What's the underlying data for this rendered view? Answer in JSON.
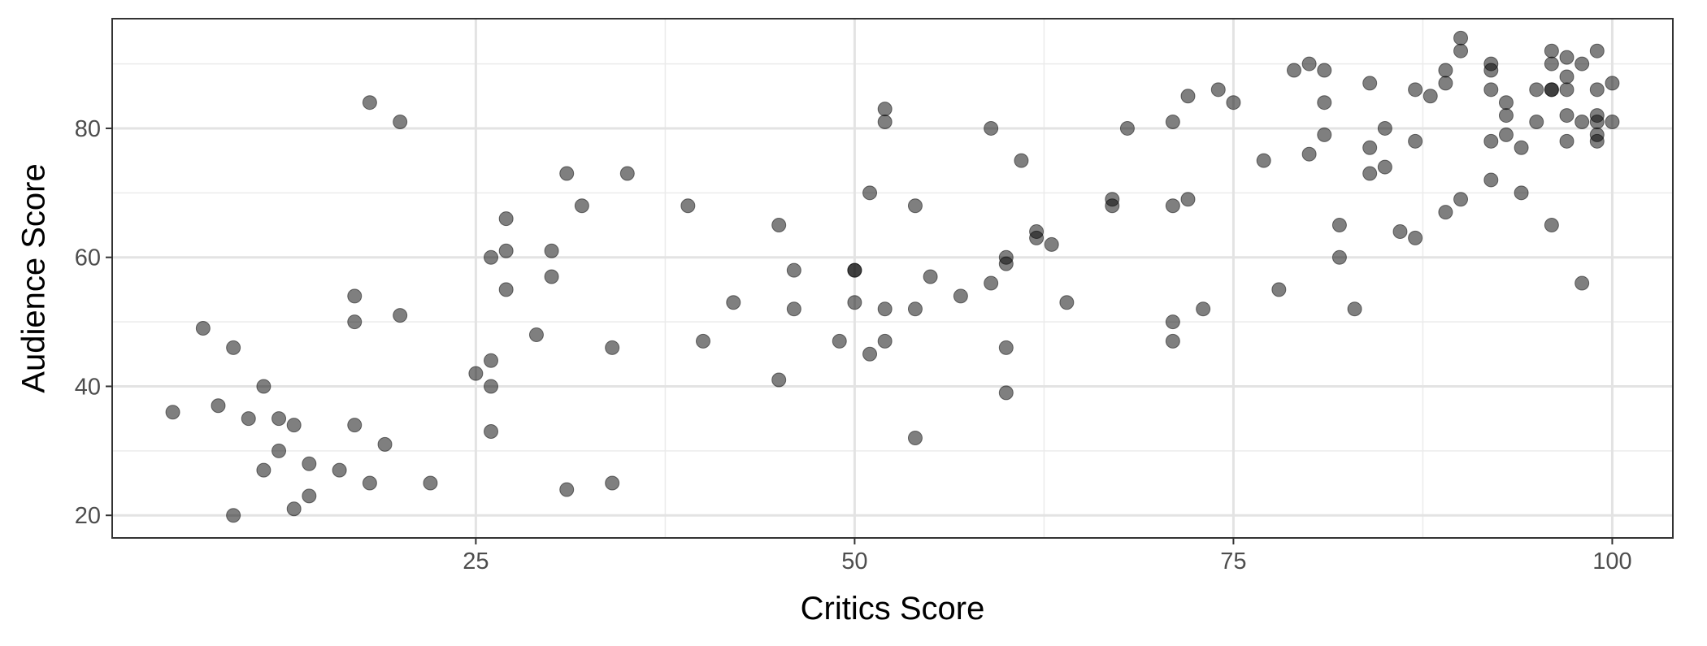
{
  "chart_data": {
    "type": "scatter",
    "title": "",
    "xlabel": "Critics Score",
    "ylabel": "Audience Score",
    "xlim": [
      1,
      104
    ],
    "ylim": [
      16.5,
      97
    ],
    "x_ticks": [
      25,
      50,
      75,
      100
    ],
    "y_ticks": [
      20,
      40,
      60,
      80
    ],
    "x_minor_ticks": [
      37.5,
      62.5,
      87.5
    ],
    "y_minor_ticks": [
      30,
      50,
      70,
      90
    ],
    "x_tick_labels": [
      "25",
      "50",
      "75",
      "100"
    ],
    "y_tick_labels": [
      "20",
      "40",
      "60",
      "80"
    ],
    "grid": true,
    "point_color": "#000000",
    "point_opacity": 0.5,
    "points": [
      {
        "x": 5,
        "y": 36
      },
      {
        "x": 7,
        "y": 49
      },
      {
        "x": 8,
        "y": 37
      },
      {
        "x": 9,
        "y": 46
      },
      {
        "x": 9,
        "y": 20
      },
      {
        "x": 10,
        "y": 35
      },
      {
        "x": 11,
        "y": 40
      },
      {
        "x": 11,
        "y": 27
      },
      {
        "x": 12,
        "y": 35
      },
      {
        "x": 12,
        "y": 30
      },
      {
        "x": 13,
        "y": 34
      },
      {
        "x": 13,
        "y": 21
      },
      {
        "x": 14,
        "y": 28
      },
      {
        "x": 14,
        "y": 23
      },
      {
        "x": 16,
        "y": 27
      },
      {
        "x": 17,
        "y": 54
      },
      {
        "x": 17,
        "y": 50
      },
      {
        "x": 17,
        "y": 34
      },
      {
        "x": 18,
        "y": 84
      },
      {
        "x": 18,
        "y": 25
      },
      {
        "x": 19,
        "y": 31
      },
      {
        "x": 20,
        "y": 81
      },
      {
        "x": 20,
        "y": 51
      },
      {
        "x": 22,
        "y": 25
      },
      {
        "x": 25,
        "y": 42
      },
      {
        "x": 26,
        "y": 60
      },
      {
        "x": 26,
        "y": 44
      },
      {
        "x": 26,
        "y": 40
      },
      {
        "x": 26,
        "y": 33
      },
      {
        "x": 27,
        "y": 66
      },
      {
        "x": 27,
        "y": 61
      },
      {
        "x": 27,
        "y": 55
      },
      {
        "x": 29,
        "y": 48
      },
      {
        "x": 30,
        "y": 61
      },
      {
        "x": 30,
        "y": 57
      },
      {
        "x": 31,
        "y": 73
      },
      {
        "x": 31,
        "y": 24
      },
      {
        "x": 32,
        "y": 68
      },
      {
        "x": 34,
        "y": 46
      },
      {
        "x": 34,
        "y": 25
      },
      {
        "x": 35,
        "y": 73
      },
      {
        "x": 39,
        "y": 68
      },
      {
        "x": 40,
        "y": 47
      },
      {
        "x": 42,
        "y": 53
      },
      {
        "x": 45,
        "y": 65
      },
      {
        "x": 45,
        "y": 41
      },
      {
        "x": 46,
        "y": 58
      },
      {
        "x": 46,
        "y": 52
      },
      {
        "x": 49,
        "y": 47
      },
      {
        "x": 50,
        "y": 58
      },
      {
        "x": 50,
        "y": 58
      },
      {
        "x": 50,
        "y": 53
      },
      {
        "x": 51,
        "y": 70
      },
      {
        "x": 51,
        "y": 45
      },
      {
        "x": 52,
        "y": 83
      },
      {
        "x": 52,
        "y": 81
      },
      {
        "x": 52,
        "y": 52
      },
      {
        "x": 52,
        "y": 47
      },
      {
        "x": 54,
        "y": 68
      },
      {
        "x": 54,
        "y": 52
      },
      {
        "x": 54,
        "y": 32
      },
      {
        "x": 55,
        "y": 57
      },
      {
        "x": 57,
        "y": 54
      },
      {
        "x": 59,
        "y": 80
      },
      {
        "x": 59,
        "y": 56
      },
      {
        "x": 60,
        "y": 60
      },
      {
        "x": 60,
        "y": 59
      },
      {
        "x": 60,
        "y": 46
      },
      {
        "x": 60,
        "y": 39
      },
      {
        "x": 61,
        "y": 75
      },
      {
        "x": 62,
        "y": 64
      },
      {
        "x": 62,
        "y": 63
      },
      {
        "x": 63,
        "y": 62
      },
      {
        "x": 64,
        "y": 53
      },
      {
        "x": 67,
        "y": 69
      },
      {
        "x": 67,
        "y": 68
      },
      {
        "x": 68,
        "y": 80
      },
      {
        "x": 71,
        "y": 81
      },
      {
        "x": 71,
        "y": 68
      },
      {
        "x": 71,
        "y": 50
      },
      {
        "x": 71,
        "y": 47
      },
      {
        "x": 72,
        "y": 85
      },
      {
        "x": 72,
        "y": 69
      },
      {
        "x": 73,
        "y": 52
      },
      {
        "x": 74,
        "y": 86
      },
      {
        "x": 75,
        "y": 84
      },
      {
        "x": 77,
        "y": 75
      },
      {
        "x": 78,
        "y": 55
      },
      {
        "x": 79,
        "y": 89
      },
      {
        "x": 80,
        "y": 90
      },
      {
        "x": 80,
        "y": 76
      },
      {
        "x": 81,
        "y": 89
      },
      {
        "x": 81,
        "y": 84
      },
      {
        "x": 81,
        "y": 79
      },
      {
        "x": 82,
        "y": 65
      },
      {
        "x": 82,
        "y": 60
      },
      {
        "x": 83,
        "y": 52
      },
      {
        "x": 84,
        "y": 87
      },
      {
        "x": 84,
        "y": 77
      },
      {
        "x": 84,
        "y": 73
      },
      {
        "x": 85,
        "y": 80
      },
      {
        "x": 85,
        "y": 74
      },
      {
        "x": 86,
        "y": 64
      },
      {
        "x": 87,
        "y": 86
      },
      {
        "x": 87,
        "y": 78
      },
      {
        "x": 87,
        "y": 63
      },
      {
        "x": 88,
        "y": 85
      },
      {
        "x": 89,
        "y": 89
      },
      {
        "x": 89,
        "y": 87
      },
      {
        "x": 89,
        "y": 67
      },
      {
        "x": 90,
        "y": 94
      },
      {
        "x": 90,
        "y": 92
      },
      {
        "x": 90,
        "y": 69
      },
      {
        "x": 92,
        "y": 90
      },
      {
        "x": 92,
        "y": 89
      },
      {
        "x": 92,
        "y": 86
      },
      {
        "x": 92,
        "y": 78
      },
      {
        "x": 92,
        "y": 72
      },
      {
        "x": 93,
        "y": 84
      },
      {
        "x": 93,
        "y": 82
      },
      {
        "x": 93,
        "y": 79
      },
      {
        "x": 94,
        "y": 77
      },
      {
        "x": 94,
        "y": 70
      },
      {
        "x": 95,
        "y": 86
      },
      {
        "x": 95,
        "y": 81
      },
      {
        "x": 96,
        "y": 92
      },
      {
        "x": 96,
        "y": 90
      },
      {
        "x": 96,
        "y": 86
      },
      {
        "x": 96,
        "y": 86
      },
      {
        "x": 96,
        "y": 65
      },
      {
        "x": 97,
        "y": 91
      },
      {
        "x": 97,
        "y": 88
      },
      {
        "x": 97,
        "y": 86
      },
      {
        "x": 97,
        "y": 82
      },
      {
        "x": 97,
        "y": 78
      },
      {
        "x": 98,
        "y": 90
      },
      {
        "x": 98,
        "y": 81
      },
      {
        "x": 98,
        "y": 56
      },
      {
        "x": 99,
        "y": 92
      },
      {
        "x": 99,
        "y": 86
      },
      {
        "x": 99,
        "y": 82
      },
      {
        "x": 99,
        "y": 81
      },
      {
        "x": 99,
        "y": 79
      },
      {
        "x": 99,
        "y": 78
      },
      {
        "x": 100,
        "y": 87
      },
      {
        "x": 100,
        "y": 81
      }
    ]
  }
}
